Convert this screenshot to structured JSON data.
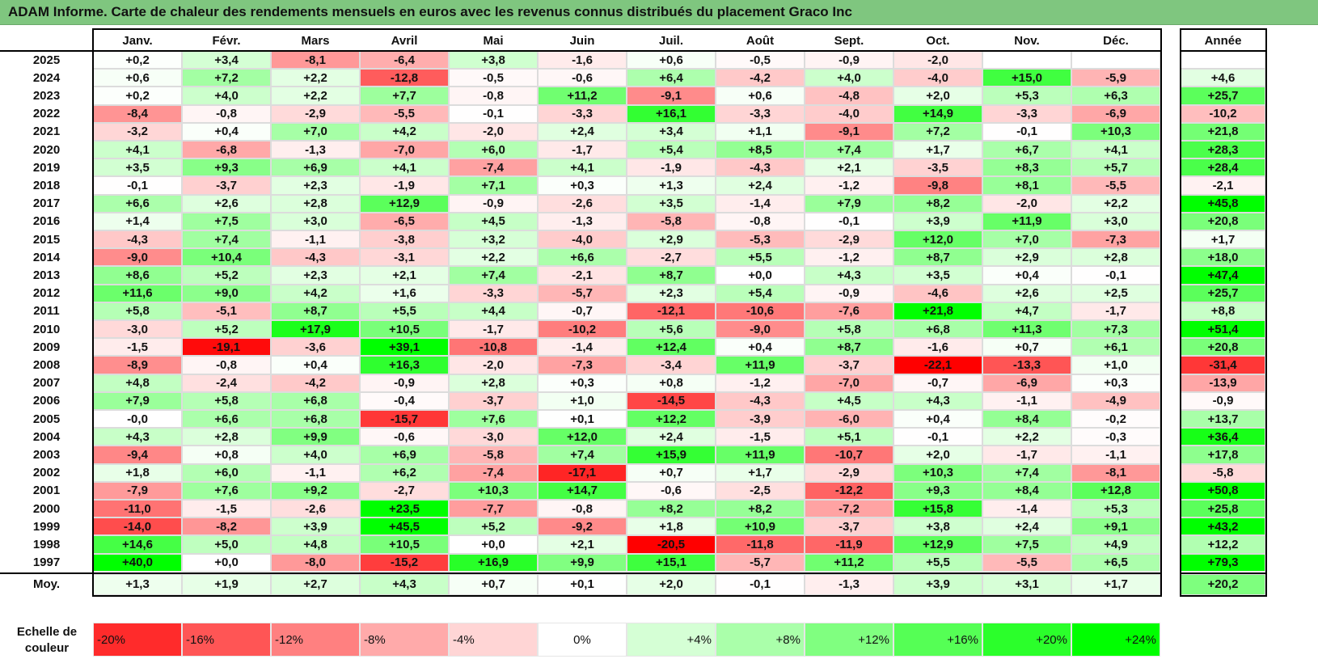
{
  "title": "ADAM Informe. Carte de chaleur des rendements mensuels en euros avec les revenus connus distribués du placement Graco Inc",
  "chart_data": {
    "type": "heatmap",
    "title": "ADAM Informe. Carte de chaleur des rendements mensuels en euros avec les revenus connus distribués du placement Graco Inc",
    "columns": [
      "Janv.",
      "Févr.",
      "Mars",
      "Avril",
      "Mai",
      "Juin",
      "Juil.",
      "Août",
      "Sept.",
      "Oct.",
      "Nov.",
      "Déc."
    ],
    "year_column_label": "Année",
    "rows": [
      {
        "year": "2025",
        "values": [
          "+0,2",
          "+3,4",
          "-8,1",
          "-6,4",
          "+3,8",
          "-1,6",
          "+0,6",
          "-0,5",
          "-0,9",
          "-2,0",
          "",
          ""
        ],
        "annual": ""
      },
      {
        "year": "2024",
        "values": [
          "+0,6",
          "+7,2",
          "+2,2",
          "-12,8",
          "-0,5",
          "-0,6",
          "+6,4",
          "-4,2",
          "+4,0",
          "-4,0",
          "+15,0",
          "-5,9"
        ],
        "annual": "+4,6"
      },
      {
        "year": "2023",
        "values": [
          "+0,2",
          "+4,0",
          "+2,2",
          "+7,7",
          "-0,8",
          "+11,2",
          "-9,1",
          "+0,6",
          "-4,8",
          "+2,0",
          "+5,3",
          "+6,3"
        ],
        "annual": "+25,7"
      },
      {
        "year": "2022",
        "values": [
          "-8,4",
          "-0,8",
          "-2,9",
          "-5,5",
          "-0,1",
          "-3,3",
          "+16,1",
          "-3,3",
          "-4,0",
          "+14,9",
          "-3,3",
          "-6,9"
        ],
        "annual": "-10,2"
      },
      {
        "year": "2021",
        "values": [
          "-3,2",
          "+0,4",
          "+7,0",
          "+4,2",
          "-2,0",
          "+2,4",
          "+3,4",
          "+1,1",
          "-9,1",
          "+7,2",
          "-0,1",
          "+10,3"
        ],
        "annual": "+21,8"
      },
      {
        "year": "2020",
        "values": [
          "+4,1",
          "-6,8",
          "-1,3",
          "-7,0",
          "+6,0",
          "-1,7",
          "+5,4",
          "+8,5",
          "+7,4",
          "+1,7",
          "+6,7",
          "+4,1"
        ],
        "annual": "+28,3"
      },
      {
        "year": "2019",
        "values": [
          "+3,5",
          "+9,3",
          "+6,9",
          "+4,1",
          "-7,4",
          "+4,1",
          "-1,9",
          "-4,3",
          "+2,1",
          "-3,5",
          "+8,3",
          "+5,7"
        ],
        "annual": "+28,4"
      },
      {
        "year": "2018",
        "values": [
          "-0,1",
          "-3,7",
          "+2,3",
          "-1,9",
          "+7,1",
          "+0,3",
          "+1,3",
          "+2,4",
          "-1,2",
          "-9,8",
          "+8,1",
          "-5,5"
        ],
        "annual": "-2,1"
      },
      {
        "year": "2017",
        "values": [
          "+6,6",
          "+2,6",
          "+2,8",
          "+12,9",
          "-0,9",
          "-2,6",
          "+3,5",
          "-1,4",
          "+7,9",
          "+8,2",
          "-2,0",
          "+2,2"
        ],
        "annual": "+45,8"
      },
      {
        "year": "2016",
        "values": [
          "+1,4",
          "+7,5",
          "+3,0",
          "-6,5",
          "+4,5",
          "-1,3",
          "-5,8",
          "-0,8",
          "-0,1",
          "+3,9",
          "+11,9",
          "+3,0"
        ],
        "annual": "+20,8"
      },
      {
        "year": "2015",
        "values": [
          "-4,3",
          "+7,4",
          "-1,1",
          "-3,8",
          "+3,2",
          "-4,0",
          "+2,9",
          "-5,3",
          "-2,9",
          "+12,0",
          "+7,0",
          "-7,3"
        ],
        "annual": "+1,7"
      },
      {
        "year": "2014",
        "values": [
          "-9,0",
          "+10,4",
          "-4,3",
          "-3,1",
          "+2,2",
          "+6,6",
          "-2,7",
          "+5,5",
          "-1,2",
          "+8,7",
          "+2,9",
          "+2,8"
        ],
        "annual": "+18,0"
      },
      {
        "year": "2013",
        "values": [
          "+8,6",
          "+5,2",
          "+2,3",
          "+2,1",
          "+7,4",
          "-2,1",
          "+8,7",
          "+0,0",
          "+4,3",
          "+3,5",
          "+0,4",
          "-0,1"
        ],
        "annual": "+47,4"
      },
      {
        "year": "2012",
        "values": [
          "+11,6",
          "+9,0",
          "+4,2",
          "+1,6",
          "-3,3",
          "-5,7",
          "+2,3",
          "+5,4",
          "-0,9",
          "-4,6",
          "+2,6",
          "+2,5"
        ],
        "annual": "+25,7"
      },
      {
        "year": "2011",
        "values": [
          "+5,8",
          "-5,1",
          "+8,7",
          "+5,5",
          "+4,4",
          "-0,7",
          "-12,1",
          "-10,6",
          "-7,6",
          "+21,8",
          "+4,7",
          "-1,7"
        ],
        "annual": "+8,8"
      },
      {
        "year": "2010",
        "values": [
          "-3,0",
          "+5,2",
          "+17,9",
          "+10,5",
          "-1,7",
          "-10,2",
          "+5,6",
          "-9,0",
          "+5,8",
          "+6,8",
          "+11,3",
          "+7,3"
        ],
        "annual": "+51,4"
      },
      {
        "year": "2009",
        "values": [
          "-1,5",
          "-19,1",
          "-3,6",
          "+39,1",
          "-10,8",
          "-1,4",
          "+12,4",
          "+0,4",
          "+8,7",
          "-1,6",
          "+0,7",
          "+6,1"
        ],
        "annual": "+20,8"
      },
      {
        "year": "2008",
        "values": [
          "-8,9",
          "-0,8",
          "+0,4",
          "+16,3",
          "-2,0",
          "-7,3",
          "-3,4",
          "+11,9",
          "-3,7",
          "-22,1",
          "-13,3",
          "+1,0"
        ],
        "annual": "-31,4"
      },
      {
        "year": "2007",
        "values": [
          "+4,8",
          "-2,4",
          "-4,2",
          "-0,9",
          "+2,8",
          "+0,3",
          "+0,8",
          "-1,2",
          "-7,0",
          "-0,7",
          "-6,9",
          "+0,3"
        ],
        "annual": "-13,9"
      },
      {
        "year": "2006",
        "values": [
          "+7,9",
          "+5,8",
          "+6,8",
          "-0,4",
          "-3,7",
          "+1,0",
          "-14,5",
          "-4,3",
          "+4,5",
          "+4,3",
          "-1,1",
          "-4,9"
        ],
        "annual": "-0,9"
      },
      {
        "year": "2005",
        "values": [
          "-0,0",
          "+6,6",
          "+6,8",
          "-15,7",
          "+7,6",
          "+0,1",
          "+12,2",
          "-3,9",
          "-6,0",
          "+0,4",
          "+8,4",
          "-0,2"
        ],
        "annual": "+13,7"
      },
      {
        "year": "2004",
        "values": [
          "+4,3",
          "+2,8",
          "+9,9",
          "-0,6",
          "-3,0",
          "+12,0",
          "+2,4",
          "-1,5",
          "+5,1",
          "-0,1",
          "+2,2",
          "-0,3"
        ],
        "annual": "+36,4"
      },
      {
        "year": "2003",
        "values": [
          "-9,4",
          "+0,8",
          "+4,0",
          "+6,9",
          "-5,8",
          "+7,4",
          "+15,9",
          "+11,9",
          "-10,7",
          "+2,0",
          "-1,7",
          "-1,1"
        ],
        "annual": "+17,8"
      },
      {
        "year": "2002",
        "values": [
          "+1,8",
          "+6,0",
          "-1,1",
          "+6,2",
          "-7,4",
          "-17,1",
          "+0,7",
          "+1,7",
          "-2,9",
          "+10,3",
          "+7,4",
          "-8,1"
        ],
        "annual": "-5,8"
      },
      {
        "year": "2001",
        "values": [
          "-7,9",
          "+7,6",
          "+9,2",
          "-2,7",
          "+10,3",
          "+14,7",
          "-0,6",
          "-2,5",
          "-12,2",
          "+9,3",
          "+8,4",
          "+12,8"
        ],
        "annual": "+50,8"
      },
      {
        "year": "2000",
        "values": [
          "-11,0",
          "-1,5",
          "-2,6",
          "+23,5",
          "-7,7",
          "-0,8",
          "+8,2",
          "+8,2",
          "-7,2",
          "+15,8",
          "-1,4",
          "+5,3"
        ],
        "annual": "+25,8"
      },
      {
        "year": "1999",
        "values": [
          "-14,0",
          "-8,2",
          "+3,9",
          "+45,5",
          "+5,2",
          "-9,2",
          "+1,8",
          "+10,9",
          "-3,7",
          "+3,8",
          "+2,4",
          "+9,1"
        ],
        "annual": "+43,2"
      },
      {
        "year": "1998",
        "values": [
          "+14,6",
          "+5,0",
          "+4,8",
          "+10,5",
          "+0,0",
          "+2,1",
          "-20,5",
          "-11,8",
          "-11,9",
          "+12,9",
          "+7,5",
          "+4,9"
        ],
        "annual": "+12,2"
      },
      {
        "year": "1997",
        "values": [
          "+40,0",
          "+0,0",
          "-8,0",
          "-15,2",
          "+16,9",
          "+9,9",
          "+15,1",
          "-5,7",
          "+11,2",
          "+5,5",
          "-5,5",
          "+6,5"
        ],
        "annual": "+79,3"
      }
    ],
    "average_row": {
      "label": "Moy.",
      "values": [
        "+1,3",
        "+1,9",
        "+2,7",
        "+4,3",
        "+0,7",
        "+0,1",
        "+2,0",
        "-0,1",
        "-1,3",
        "+3,9",
        "+3,1",
        "+1,7"
      ],
      "annual": "+20,2"
    },
    "legend": {
      "title": "Echelle de couleur",
      "stops": [
        "-20%",
        "-16%",
        "-12%",
        "-8%",
        "-4%",
        "0%",
        "+4%",
        "+8%",
        "+12%",
        "+16%",
        "+20%",
        "+24%"
      ]
    },
    "color_scale": {
      "negative": "#ff0000",
      "neutral": "#ffffff",
      "positive": "#00ff00",
      "monthly_saturation": 20,
      "annual_saturation": 40
    }
  }
}
